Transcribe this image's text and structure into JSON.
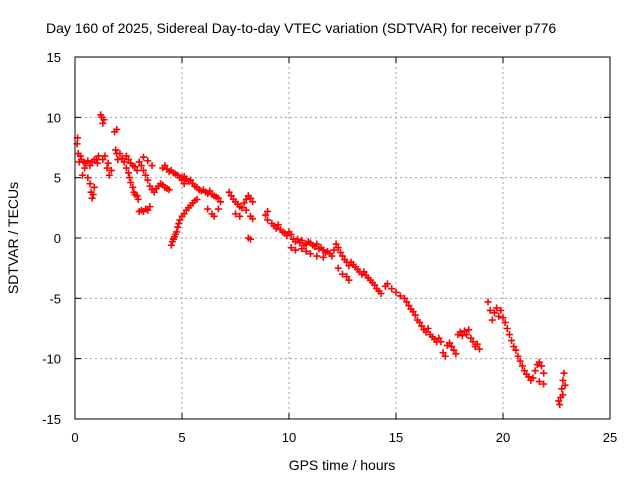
{
  "chart_data": {
    "type": "scatter",
    "title": "Day 160 of 2025, Sidereal Day-to-day VTEC variation (SDTVAR) for receiver p776",
    "xlabel": "GPS time / hours",
    "ylabel": "SDTVAR / TECUs",
    "xlim": [
      0,
      25
    ],
    "ylim": [
      -15,
      15
    ],
    "xticks": [
      0,
      5,
      10,
      15,
      20,
      25
    ],
    "yticks": [
      -15,
      -10,
      -5,
      0,
      5,
      10,
      15
    ],
    "grid": true,
    "marker": "plus",
    "color": "#ff0000",
    "series": [
      {
        "name": "SDTVAR",
        "points": [
          [
            0.1,
            7.8
          ],
          [
            0.12,
            8.3
          ],
          [
            0.15,
            7.0
          ],
          [
            0.2,
            6.3
          ],
          [
            0.25,
            6.8
          ],
          [
            0.3,
            6.5
          ],
          [
            0.4,
            6.3
          ],
          [
            0.5,
            6.2
          ],
          [
            0.6,
            6.4
          ],
          [
            0.7,
            6.0
          ],
          [
            0.8,
            6.3
          ],
          [
            0.9,
            6.5
          ],
          [
            0.35,
            5.2
          ],
          [
            0.45,
            5.8
          ],
          [
            0.6,
            5.0
          ],
          [
            0.7,
            4.5
          ],
          [
            0.75,
            3.8
          ],
          [
            0.8,
            3.3
          ],
          [
            0.85,
            3.6
          ],
          [
            0.9,
            4.2
          ],
          [
            1.0,
            6.5
          ],
          [
            1.05,
            6.2
          ],
          [
            1.1,
            6.8
          ],
          [
            1.2,
            10.2
          ],
          [
            1.25,
            10.0
          ],
          [
            1.3,
            9.5
          ],
          [
            1.35,
            9.8
          ],
          [
            1.3,
            6.5
          ],
          [
            1.4,
            6.8
          ],
          [
            1.5,
            5.8
          ],
          [
            1.55,
            6.2
          ],
          [
            1.6,
            5.2
          ],
          [
            1.7,
            5.6
          ],
          [
            1.85,
            8.8
          ],
          [
            1.95,
            9.0
          ],
          [
            1.9,
            7.3
          ],
          [
            1.95,
            7.0
          ],
          [
            2.0,
            6.5
          ],
          [
            2.1,
            7.0
          ],
          [
            2.2,
            6.6
          ],
          [
            2.3,
            6.3
          ],
          [
            2.4,
            6.8
          ],
          [
            2.5,
            6.5
          ],
          [
            2.6,
            6.2
          ],
          [
            2.7,
            6.0
          ],
          [
            2.8,
            5.9
          ],
          [
            2.9,
            5.6
          ],
          [
            2.4,
            5.8
          ],
          [
            2.5,
            5.4
          ],
          [
            2.55,
            5.0
          ],
          [
            2.6,
            4.6
          ],
          [
            2.7,
            4.2
          ],
          [
            2.75,
            3.8
          ],
          [
            2.8,
            3.6
          ],
          [
            2.9,
            3.5
          ],
          [
            2.95,
            3.2
          ],
          [
            3.0,
            6.3
          ],
          [
            3.1,
            6.0
          ],
          [
            3.2,
            5.6
          ],
          [
            3.3,
            5.2
          ],
          [
            3.4,
            4.8
          ],
          [
            3.5,
            4.3
          ],
          [
            3.6,
            4.0
          ],
          [
            3.7,
            3.8
          ],
          [
            3.8,
            4.1
          ],
          [
            3.9,
            4.3
          ],
          [
            4.0,
            4.5
          ],
          [
            4.1,
            4.4
          ],
          [
            4.2,
            4.2
          ],
          [
            4.3,
            4.1
          ],
          [
            4.4,
            4.0
          ],
          [
            3.2,
            6.7
          ],
          [
            3.4,
            6.4
          ],
          [
            3.6,
            6.0
          ],
          [
            3.0,
            2.2
          ],
          [
            3.1,
            2.3
          ],
          [
            3.2,
            2.2
          ],
          [
            3.3,
            2.4
          ],
          [
            3.4,
            2.3
          ],
          [
            3.5,
            2.6
          ],
          [
            4.1,
            5.8
          ],
          [
            4.2,
            6.0
          ],
          [
            4.3,
            5.7
          ],
          [
            4.4,
            5.5
          ],
          [
            4.5,
            5.6
          ],
          [
            4.6,
            5.4
          ],
          [
            4.7,
            5.3
          ],
          [
            4.8,
            5.2
          ],
          [
            4.9,
            5.0
          ],
          [
            5.0,
            4.8
          ],
          [
            5.1,
            4.5
          ],
          [
            4.5,
            -0.6
          ],
          [
            4.55,
            -0.3
          ],
          [
            4.6,
            -0.1
          ],
          [
            4.65,
            0.1
          ],
          [
            4.7,
            0.3
          ],
          [
            4.75,
            0.5
          ],
          [
            4.8,
            0.9
          ],
          [
            4.85,
            1.2
          ],
          [
            4.9,
            1.5
          ],
          [
            5.0,
            1.8
          ],
          [
            5.1,
            2.0
          ],
          [
            5.2,
            2.3
          ],
          [
            5.3,
            2.5
          ],
          [
            5.4,
            2.7
          ],
          [
            5.5,
            2.9
          ],
          [
            5.6,
            3.1
          ],
          [
            5.7,
            3.2
          ],
          [
            5.0,
            5.0
          ],
          [
            5.1,
            5.1
          ],
          [
            5.2,
            4.9
          ],
          [
            5.3,
            4.7
          ],
          [
            5.4,
            4.8
          ],
          [
            5.5,
            4.5
          ],
          [
            5.6,
            4.3
          ],
          [
            5.7,
            4.2
          ],
          [
            5.8,
            4.0
          ],
          [
            5.9,
            3.9
          ],
          [
            6.0,
            4.0
          ],
          [
            6.1,
            3.8
          ],
          [
            6.2,
            3.7
          ],
          [
            6.3,
            3.9
          ],
          [
            6.4,
            3.6
          ],
          [
            6.5,
            3.5
          ],
          [
            6.6,
            3.4
          ],
          [
            6.7,
            3.3
          ],
          [
            6.8,
            3.0
          ],
          [
            6.2,
            2.4
          ],
          [
            6.4,
            2.0
          ],
          [
            6.5,
            1.8
          ],
          [
            6.7,
            2.4
          ],
          [
            7.2,
            3.8
          ],
          [
            7.3,
            3.5
          ],
          [
            7.4,
            3.2
          ],
          [
            7.5,
            3.0
          ],
          [
            7.6,
            2.8
          ],
          [
            7.7,
            2.6
          ],
          [
            7.8,
            2.5
          ],
          [
            7.9,
            2.9
          ],
          [
            8.0,
            3.2
          ],
          [
            8.1,
            3.5
          ],
          [
            8.2,
            3.3
          ],
          [
            8.3,
            3.0
          ],
          [
            7.5,
            2.0
          ],
          [
            7.7,
            1.8
          ],
          [
            8.0,
            2.3
          ],
          [
            8.2,
            1.8
          ],
          [
            8.3,
            1.6
          ],
          [
            8.1,
            0.0
          ],
          [
            8.2,
            -0.1
          ],
          [
            8.9,
            1.9
          ],
          [
            9.0,
            2.2
          ],
          [
            9.0,
            1.5
          ],
          [
            9.2,
            1.2
          ],
          [
            9.3,
            1.0
          ],
          [
            9.4,
            0.8
          ],
          [
            9.5,
            1.1
          ],
          [
            9.6,
            0.7
          ],
          [
            9.7,
            0.5
          ],
          [
            9.8,
            0.4
          ],
          [
            9.9,
            0.2
          ],
          [
            10.0,
            0.5
          ],
          [
            10.1,
            0.3
          ],
          [
            10.2,
            -0.1
          ],
          [
            10.3,
            -0.3
          ],
          [
            10.4,
            -0.1
          ],
          [
            10.5,
            -0.4
          ],
          [
            10.6,
            -0.2
          ],
          [
            10.7,
            -0.6
          ],
          [
            10.8,
            -0.5
          ],
          [
            10.9,
            -0.3
          ],
          [
            10.1,
            -0.8
          ],
          [
            10.3,
            -1.0
          ],
          [
            10.6,
            -0.9
          ],
          [
            10.8,
            -1.1
          ],
          [
            11.0,
            -0.4
          ],
          [
            11.1,
            -0.6
          ],
          [
            11.2,
            -0.7
          ],
          [
            11.3,
            -0.5
          ],
          [
            11.4,
            -0.9
          ],
          [
            11.5,
            -0.8
          ],
          [
            11.6,
            -1.0
          ],
          [
            11.7,
            -1.2
          ],
          [
            11.8,
            -1.1
          ],
          [
            11.0,
            -1.3
          ],
          [
            11.3,
            -1.5
          ],
          [
            11.6,
            -1.6
          ],
          [
            11.9,
            -1.3
          ],
          [
            12.0,
            -1.5
          ],
          [
            12.1,
            -1.0
          ],
          [
            12.2,
            -0.5
          ],
          [
            12.3,
            -0.8
          ],
          [
            12.4,
            -1.2
          ],
          [
            12.5,
            -1.5
          ],
          [
            12.6,
            -1.8
          ],
          [
            12.7,
            -2.0
          ],
          [
            12.8,
            -2.3
          ],
          [
            12.3,
            -2.5
          ],
          [
            12.5,
            -3.0
          ],
          [
            12.7,
            -3.2
          ],
          [
            12.8,
            -3.5
          ],
          [
            12.9,
            -2.0
          ],
          [
            13.0,
            -2.2
          ],
          [
            13.1,
            -2.4
          ],
          [
            13.2,
            -2.6
          ],
          [
            13.3,
            -2.8
          ],
          [
            13.4,
            -3.0
          ],
          [
            13.5,
            -2.8
          ],
          [
            13.6,
            -3.1
          ],
          [
            13.7,
            -3.3
          ],
          [
            13.8,
            -3.5
          ],
          [
            13.9,
            -3.7
          ],
          [
            14.0,
            -3.9
          ],
          [
            14.1,
            -4.2
          ],
          [
            14.2,
            -4.4
          ],
          [
            14.3,
            -4.6
          ],
          [
            14.5,
            -4.0
          ],
          [
            14.6,
            -3.8
          ],
          [
            14.8,
            -4.2
          ],
          [
            15.0,
            -4.5
          ],
          [
            15.2,
            -4.8
          ],
          [
            15.4,
            -5.0
          ],
          [
            15.5,
            -5.3
          ],
          [
            15.6,
            -5.6
          ],
          [
            15.7,
            -5.9
          ],
          [
            15.8,
            -6.1
          ],
          [
            15.9,
            -6.4
          ],
          [
            16.0,
            -6.8
          ],
          [
            16.1,
            -7.0
          ],
          [
            16.2,
            -7.3
          ],
          [
            16.3,
            -7.6
          ],
          [
            16.4,
            -7.8
          ],
          [
            16.5,
            -7.5
          ],
          [
            16.6,
            -8.0
          ],
          [
            16.7,
            -8.2
          ],
          [
            16.8,
            -8.4
          ],
          [
            16.9,
            -8.6
          ],
          [
            17.0,
            -8.3
          ],
          [
            17.1,
            -8.6
          ],
          [
            17.2,
            -9.5
          ],
          [
            17.3,
            -9.8
          ],
          [
            17.4,
            -8.9
          ],
          [
            17.5,
            -8.7
          ],
          [
            17.6,
            -9.0
          ],
          [
            17.7,
            -9.3
          ],
          [
            17.8,
            -9.6
          ],
          [
            17.9,
            -8.0
          ],
          [
            18.0,
            -7.8
          ],
          [
            18.1,
            -8.1
          ],
          [
            18.2,
            -7.7
          ],
          [
            18.3,
            -8.0
          ],
          [
            18.4,
            -7.6
          ],
          [
            18.5,
            -8.3
          ],
          [
            18.6,
            -8.6
          ],
          [
            18.7,
            -9.0
          ],
          [
            18.8,
            -8.8
          ],
          [
            18.9,
            -9.2
          ],
          [
            19.3,
            -5.3
          ],
          [
            19.4,
            -6.0
          ],
          [
            19.5,
            -6.8
          ],
          [
            19.6,
            -6.2
          ],
          [
            19.7,
            -5.8
          ],
          [
            19.8,
            -6.5
          ],
          [
            19.9,
            -6.0
          ],
          [
            20.0,
            -6.6
          ],
          [
            20.1,
            -7.0
          ],
          [
            20.2,
            -7.5
          ],
          [
            20.3,
            -8.0
          ],
          [
            20.4,
            -8.5
          ],
          [
            20.5,
            -9.0
          ],
          [
            20.6,
            -9.3
          ],
          [
            20.7,
            -9.8
          ],
          [
            20.8,
            -10.2
          ],
          [
            20.9,
            -10.6
          ],
          [
            21.0,
            -11.0
          ],
          [
            21.1,
            -11.3
          ],
          [
            21.2,
            -11.5
          ],
          [
            21.3,
            -11.8
          ],
          [
            21.4,
            -11.6
          ],
          [
            21.5,
            -11.0
          ],
          [
            21.6,
            -10.5
          ],
          [
            21.7,
            -10.3
          ],
          [
            21.8,
            -10.6
          ],
          [
            21.9,
            -11.2
          ],
          [
            21.7,
            -11.9
          ],
          [
            21.9,
            -12.1
          ],
          [
            22.6,
            -13.5
          ],
          [
            22.65,
            -13.8
          ],
          [
            22.7,
            -13.2
          ],
          [
            22.75,
            -12.5
          ],
          [
            22.8,
            -11.8
          ],
          [
            22.85,
            -11.2
          ],
          [
            22.8,
            -13.0
          ],
          [
            22.9,
            -12.2
          ]
        ]
      }
    ]
  }
}
